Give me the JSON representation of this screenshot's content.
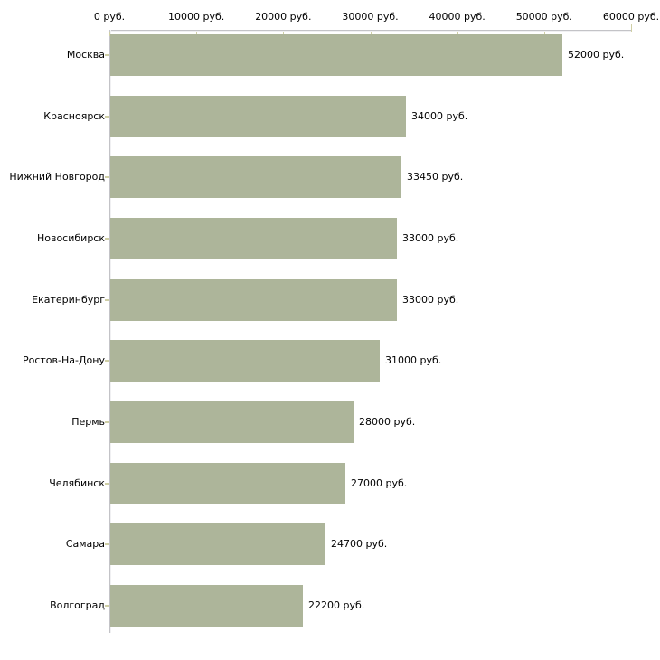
{
  "chart_data": {
    "type": "bar",
    "orientation": "horizontal",
    "title": "",
    "xlabel": "",
    "ylabel": "",
    "unit": "руб.",
    "categories": [
      "Москва",
      "Красноярск",
      "Нижний Новгород",
      "Новосибирск",
      "Екатеринбург",
      "Ростов-На-Дону",
      "Пермь",
      "Челябинск",
      "Самара",
      "Волгоград"
    ],
    "values": [
      52000,
      34000,
      33450,
      33000,
      33000,
      31000,
      28000,
      27000,
      24700,
      22200
    ],
    "value_labels": [
      "52000 руб.",
      "34000 руб.",
      "33450 руб.",
      "33000 руб.",
      "33000 руб.",
      "31000 руб.",
      "28000 руб.",
      "27000 руб.",
      "24700 руб.",
      "22200 руб."
    ],
    "x_axis": {
      "position": "top",
      "min": 0,
      "max": 60000,
      "tick_interval": 10000,
      "tick_labels": [
        "0 руб.",
        "10000 руб.",
        "20000 руб.",
        "30000 руб.",
        "40000 руб.",
        "50000 руб.",
        "60000 руб."
      ]
    },
    "grid": false,
    "legend": false,
    "colors": {
      "bar": "#ADB59A",
      "axis_line": "#C3C3C7",
      "axis_highlight": "#F0F0F2",
      "tick": "#CFCFA5",
      "text": "#000000",
      "background": "#FFFFFF"
    }
  }
}
